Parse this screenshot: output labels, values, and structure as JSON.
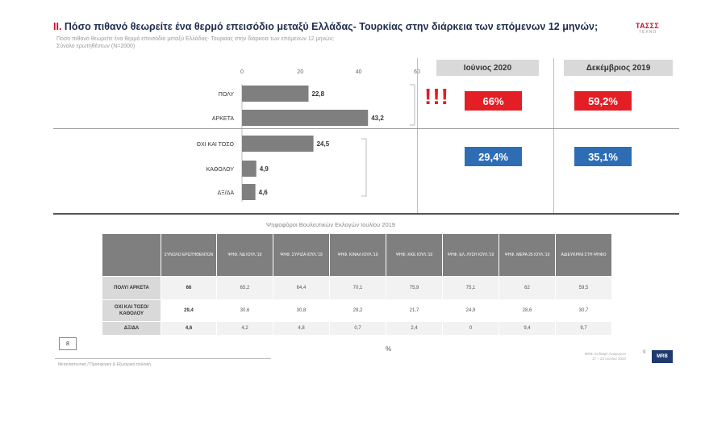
{
  "header": {
    "title_num": "II.",
    "title_text": "Πόσο πιθανό θεωρείτε ένα θερμό επεισόδιο μεταξύ Ελλάδας- Τουρκίας στην διάρκεια των επόμενων 12 μηνών;",
    "sub1": "Πόσο πιθανό θεωρείτε ένα θερμό επεισόδιο μεταξύ Ελλάδας- Τουρκίας στην διάρκεια των επόμενων 12 μηνών;",
    "sub2": "Σύνολο ερωτηθέντων (N=2000)",
    "logo_mark": "ΤΑΣΣΣ",
    "logo_tag": "ΤΕΧΝΟ"
  },
  "chart_data": {
    "type": "bar",
    "orientation": "horizontal",
    "categories": [
      "ΠΟΛΥ",
      "ΑΡΚΕΤΑ",
      "ΟΧΙ ΚΑΙ ΤΟΣΟ",
      "ΚΑΘΟΛΟΥ",
      "ΔΞ/ΔΑ"
    ],
    "values": [
      22.8,
      43.2,
      24.5,
      4.9,
      4.6
    ],
    "value_labels": [
      "22,8",
      "43,2",
      "24,5",
      "4,9",
      "4,6"
    ],
    "xlim": [
      0,
      60
    ],
    "ticks": [
      0,
      20,
      40,
      60
    ],
    "bar_color": "#7f7f7f"
  },
  "comparison": {
    "june_label": "Ιούνιος 2020",
    "dec_label": "Δεκέμβριος 2019",
    "exclaim": "!!!",
    "june_high": "66%",
    "dec_high": "59,2%",
    "june_low": "29,4%",
    "dec_low": "35,1%",
    "red": "#e31e24",
    "blue": "#2e6db4"
  },
  "table": {
    "title": "Ψηφοφόροι Βουλευτικών Εκλογών Ιουλίου 2019",
    "columns": [
      "ΣΥΝΟΛΟ ΕΡΩΤΗΘΕΝΤΩΝ",
      "ΨΗΦ. ΝΔ ΙΟΥΛ.'19",
      "ΨΗΦ. ΣΥΡΙΖΑ ΙΟΥΛ.'19",
      "ΨΗΦ. ΚΙΝΑΛ ΙΟΥΛ.'19",
      "ΨΗΦ. ΚΚΕ ΙΟΥΛ.'19",
      "ΨΗΦ. ΕΛ. ΛΥΣΗ ΙΟΥΛ.'19",
      "ΨΗΦ. ΜΕΡΑ 25 ΙΟΥΛ.'19",
      "ΑΔΙΕΥΚΡΙΝΙ ΣΤΗ ΨΗΦΟ"
    ],
    "rows": [
      {
        "label": "ΠΟΛΥ/ ΑΡΚΕΤΑ",
        "values": [
          "66",
          "65,2",
          "64,4",
          "70,1",
          "75,9",
          "75,1",
          "62",
          "59,5"
        ]
      },
      {
        "label": "ΟΧΙ ΚΑΙ ΤΟΣΟ/ ΚΑΘΟΛΟΥ",
        "values": [
          "29,4",
          "30,6",
          "30,8",
          "29,2",
          "21,7",
          "24,9",
          "28,6",
          "30,7"
        ]
      },
      {
        "label": "ΔΞ/ΔΑ",
        "values": [
          "4,6",
          "4,2",
          "4,8",
          "0,7",
          "2,4",
          "0",
          "9,4",
          "9,7"
        ]
      }
    ]
  },
  "footer": {
    "page_box": "8",
    "pct": "%",
    "note": "Μεταναστευτική / Προσφυγική & Εξωτερική πολιτική",
    "source1": "MRB: Ενδιαφέ Αναφορών",
    "source2": "17 – 23 Ιουνίου 2020",
    "page_num": "9",
    "mrb": "MRB"
  }
}
